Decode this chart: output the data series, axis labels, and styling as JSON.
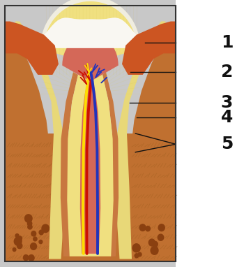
{
  "fig_width": 3.5,
  "fig_height": 3.82,
  "number_fontsize": 18,
  "line_color": "#111111",
  "label_color": "#111111",
  "bg_gray": "#c8c8c8",
  "bg_white": "#ffffff",
  "border_color": "#333333"
}
